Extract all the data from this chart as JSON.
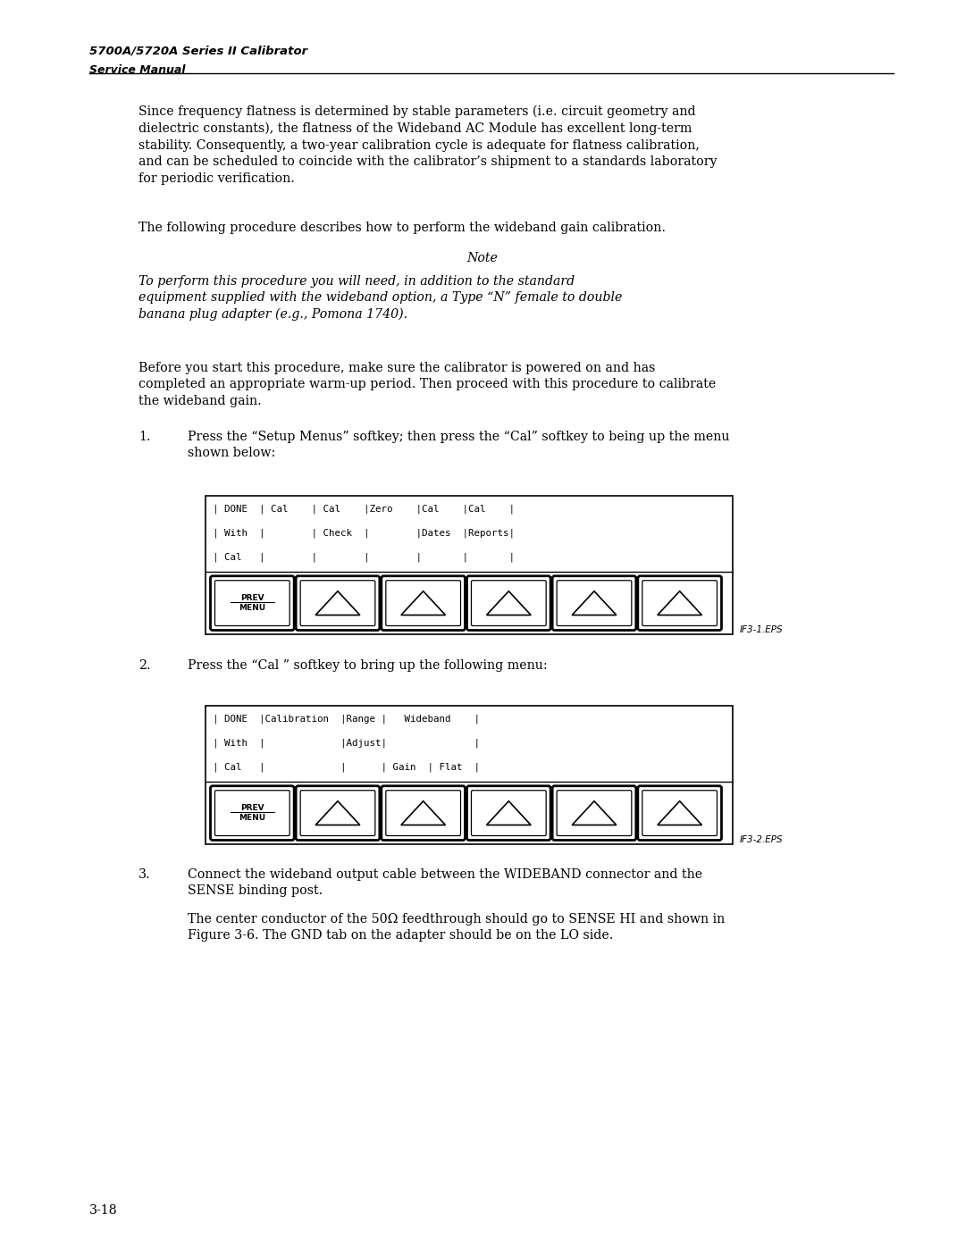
{
  "bg_color": "#ffffff",
  "page_width": 10.8,
  "page_height": 13.97,
  "header_title": "5700A/5720A Series II Calibrator",
  "header_subtitle": "Service Manual",
  "footer_text": "3-18",
  "para1": "Since frequency flatness is determined by stable parameters (i.e. circuit geometry and\ndielectric constants), the flatness of the Wideband AC Module has excellent long-term\nstability. Consequently, a two-year calibration cycle is adequate for flatness calibration,\nand can be scheduled to coincide with the calibrator’s shipment to a standards laboratory\nfor periodic verification.",
  "para2": "The following procedure describes how to perform the wideband gain calibration.",
  "note_title": "Note",
  "note_body": "To perform this procedure you will need, in addition to the standard\nequipment supplied with the wideband option, a Type “N” female to double\nbanana plug adapter (e.g., Pomona 1740).",
  "para3": "Before you start this procedure, make sure the calibrator is powered on and has\ncompleted an appropriate warm-up period. Then proceed with this procedure to calibrate\nthe wideband gain.",
  "item1_num": "1.",
  "item1_text": "Press the “Setup Menus” softkey; then press the “Cal” softkey to being up the menu\nshown below:",
  "item2_num": "2.",
  "item2_text": "Press the “Cal ” softkey to bring up the following menu:",
  "item3_num": "3.",
  "item3_text": "Connect the wideband output cable between the WIDEBAND connector and the\nSENSE binding post.",
  "item3_sub": "The center conductor of the 50Ω feedthrough should go to SENSE HI and shown in\nFigure 3-6. The GND tab on the adapter should be on the LO side.",
  "disp1_rows": [
    "| DONE  | Cal    | Cal    |Zero    |Cal    |Cal    |",
    "| With  |        | Check  |        |Dates  |Reports|",
    "| Cal   |        |        |        |       |       |"
  ],
  "disp1_label": "IF3-1.EPS",
  "disp2_rows": [
    "| DONE  |Calibration  |Range |   Wideband    |",
    "| With  |             |Adjust|               |",
    "| Cal   |             |      | Gain  | Flat  |"
  ],
  "disp2_label": "IF3-2.EPS"
}
